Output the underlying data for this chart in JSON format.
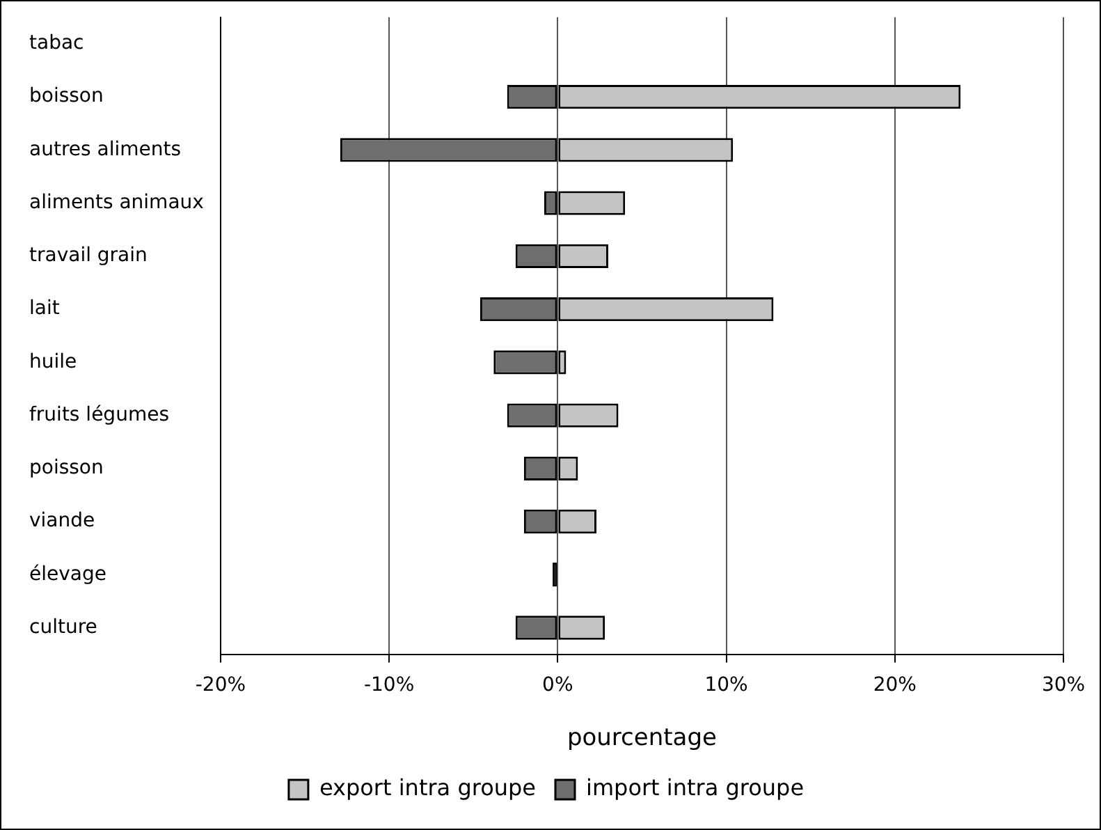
{
  "chart_data": {
    "type": "bar",
    "orientation": "horizontal",
    "xlabel": "pourcentage",
    "categories": [
      "tabac",
      "boisson",
      "autres aliments",
      "aliments animaux",
      "travail grain",
      "lait",
      "huile",
      "fruits légumes",
      "poisson",
      "viande",
      "élevage",
      "culture"
    ],
    "series": [
      {
        "name": "export intra groupe",
        "color": "#c4c4c4",
        "values": [
          null,
          23.9,
          10.4,
          4.0,
          3.0,
          12.8,
          0.5,
          3.6,
          1.2,
          2.3,
          null,
          2.8
        ]
      },
      {
        "name": "import intra groupe",
        "color": "#6e6e6e",
        "values": [
          null,
          -3.0,
          -12.9,
          -0.8,
          -2.5,
          -4.6,
          -3.8,
          -3.0,
          -2.0,
          -2.0,
          -0.3,
          -2.5
        ]
      }
    ],
    "stacked": true,
    "xlim": [
      -20,
      30
    ],
    "xticks": [
      {
        "value": -20,
        "label": "-20%"
      },
      {
        "value": -10,
        "label": "-10%"
      },
      {
        "value": 0,
        "label": "0%"
      },
      {
        "value": 10,
        "label": "10%"
      },
      {
        "value": 20,
        "label": "20%"
      },
      {
        "value": 30,
        "label": "30%"
      }
    ],
    "grid": "x",
    "legend": "bottom"
  }
}
